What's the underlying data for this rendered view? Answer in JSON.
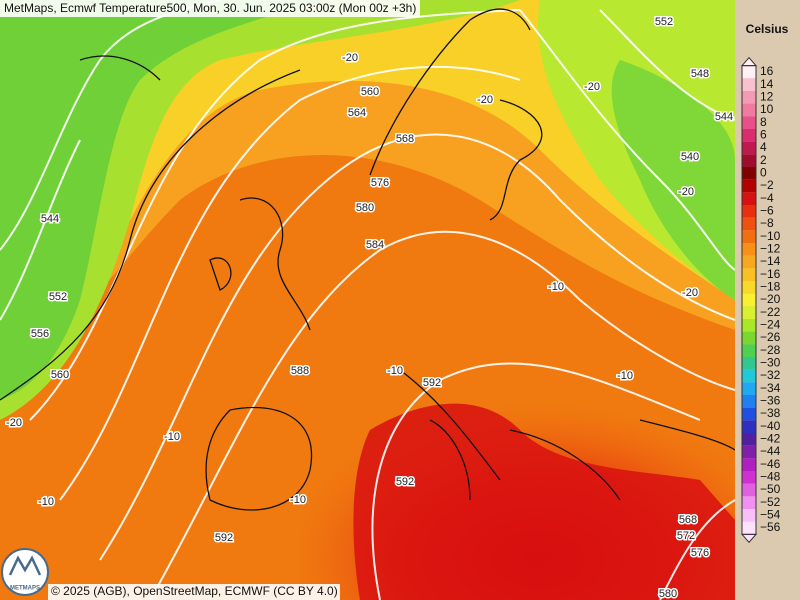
{
  "header": {
    "title": "MetMaps, Ecmwf Temperature500, Mon, 30. Jun. 2025 03:00z (Mon 00z +3h)"
  },
  "footer": {
    "copyright": "© 2025 (AGB), OpenStreetMap, ECMWF (CC BY 4.0)",
    "logo": "METMAPS"
  },
  "legend": {
    "unit": "Celsius",
    "items": [
      {
        "label": "16",
        "color": "#fff0f5"
      },
      {
        "label": "14",
        "color": "#f9c0d0"
      },
      {
        "label": "12",
        "color": "#f59ab5"
      },
      {
        "label": "10",
        "color": "#f07aa0"
      },
      {
        "label": "8",
        "color": "#e8508a"
      },
      {
        "label": "6",
        "color": "#d82d6e"
      },
      {
        "label": "4",
        "color": "#c01850"
      },
      {
        "label": "2",
        "color": "#a00c30"
      },
      {
        "label": "0",
        "color": "#800000"
      },
      {
        "label": "−2",
        "color": "#b00000"
      },
      {
        "label": "−4",
        "color": "#d81010"
      },
      {
        "label": "−6",
        "color": "#e83010"
      },
      {
        "label": "−8",
        "color": "#f05010"
      },
      {
        "label": "−10",
        "color": "#f07010"
      },
      {
        "label": "−12",
        "color": "#f89018"
      },
      {
        "label": "−14",
        "color": "#f8a820"
      },
      {
        "label": "−16",
        "color": "#f8c020"
      },
      {
        "label": "−18",
        "color": "#f8d828"
      },
      {
        "label": "−20",
        "color": "#f8f030"
      },
      {
        "label": "−22",
        "color": "#d8f030"
      },
      {
        "label": "−24",
        "color": "#a8e828"
      },
      {
        "label": "−26",
        "color": "#78d830"
      },
      {
        "label": "−28",
        "color": "#50d050"
      },
      {
        "label": "−30",
        "color": "#30c890"
      },
      {
        "label": "−32",
        "color": "#20c8d8"
      },
      {
        "label": "−34",
        "color": "#20a8f0"
      },
      {
        "label": "−36",
        "color": "#2080f0"
      },
      {
        "label": "−38",
        "color": "#2050e0"
      },
      {
        "label": "−40",
        "color": "#3030c0"
      },
      {
        "label": "−42",
        "color": "#5020a0"
      },
      {
        "label": "−44",
        "color": "#8020a8"
      },
      {
        "label": "−46",
        "color": "#b020c0"
      },
      {
        "label": "−48",
        "color": "#d030d0"
      },
      {
        "label": "−50",
        "color": "#e060e0"
      },
      {
        "label": "−52",
        "color": "#f090f0"
      },
      {
        "label": "−54",
        "color": "#f8c0f8"
      },
      {
        "label": "−56",
        "color": "#ffe0ff"
      }
    ]
  },
  "contour_labels": [
    "-20",
    "560",
    "564",
    "568",
    "576",
    "580",
    "584",
    "544",
    "552",
    "556",
    "560",
    "-20",
    "-10",
    "-10",
    "592",
    "-10",
    "588",
    "-10",
    "592",
    "592",
    "-10",
    "-10",
    "-20",
    "-20",
    "552",
    "548",
    "544",
    "540",
    "-20",
    "-20",
    "568",
    "572",
    "576",
    "580"
  ]
}
